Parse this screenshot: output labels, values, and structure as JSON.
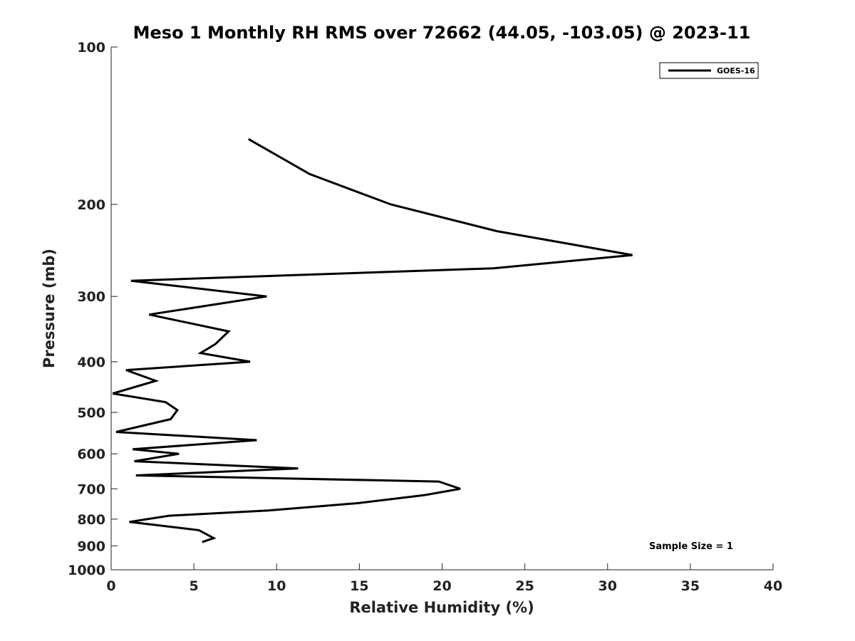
{
  "chart_data": {
    "type": "line",
    "title": "Meso 1 Monthly RH RMS over 72662 (44.05, -103.05) @ 2023-11",
    "xlabel": "Relative Humidity (%)",
    "ylabel": "Pressure (mb)",
    "xlim": [
      0,
      40
    ],
    "ylim": [
      1000,
      100
    ],
    "yscale": "log",
    "y_inverted": true,
    "grid": false,
    "legend_position": "top-right",
    "x_ticks": [
      "0",
      "5",
      "10",
      "15",
      "20",
      "25",
      "30",
      "35",
      "40"
    ],
    "y_ticks": [
      "100",
      "200",
      "300",
      "400",
      "500",
      "600",
      "700",
      "800",
      "900",
      "1000"
    ],
    "annotation": "Sample Size = 1",
    "series": [
      {
        "name": "GOES-16",
        "color": "#000000",
        "x": [
          8.3,
          12.0,
          16.9,
          23.3,
          31.5,
          23.1,
          1.2,
          9.4,
          2.3,
          7.1,
          6.3,
          5.4,
          8.4,
          0.9,
          2.7,
          0.1,
          3.3,
          4.0,
          3.6,
          0.3,
          8.8,
          1.3,
          4.1,
          1.4,
          11.3,
          1.5,
          19.8,
          21.1,
          18.9,
          15.0,
          9.5,
          3.5,
          1.1,
          5.3,
          6.2,
          5.5
        ],
        "y": [
          150,
          175,
          200,
          225,
          250,
          265,
          280,
          300,
          325,
          350,
          370,
          385,
          400,
          415,
          435,
          460,
          478,
          495,
          515,
          545,
          565,
          588,
          600,
          620,
          640,
          660,
          678,
          700,
          720,
          745,
          770,
          788,
          810,
          840,
          870,
          885
        ]
      }
    ]
  }
}
